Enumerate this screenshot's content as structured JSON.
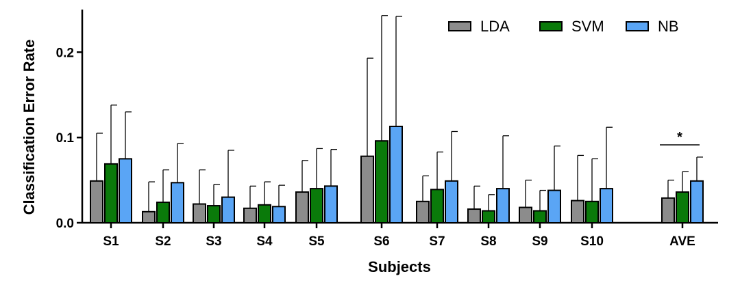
{
  "chart_data": {
    "type": "bar",
    "title": "",
    "xlabel": "Subjects",
    "ylabel": "Classification Error Rate",
    "ylim": [
      0,
      0.25
    ],
    "yticks": [
      "0.0",
      "0.1",
      "0.2"
    ],
    "ytick_values": [
      0,
      0.1,
      0.2
    ],
    "categories": [
      "S1",
      "S2",
      "S3",
      "S4",
      "S5",
      "S6",
      "S7",
      "S8",
      "S9",
      "S10",
      "AVE"
    ],
    "series": [
      {
        "name": "LDA",
        "color": "#8c8c8c",
        "values": [
          0.049,
          0.013,
          0.022,
          0.017,
          0.036,
          0.078,
          0.025,
          0.016,
          0.018,
          0.026,
          0.029
        ],
        "errors": [
          0.056,
          0.035,
          0.04,
          0.026,
          0.037,
          0.115,
          0.03,
          0.027,
          0.032,
          0.053,
          0.021
        ]
      },
      {
        "name": "SVM",
        "color": "#0a7a0a",
        "values": [
          0.069,
          0.024,
          0.02,
          0.021,
          0.04,
          0.096,
          0.039,
          0.014,
          0.014,
          0.025,
          0.036
        ],
        "errors": [
          0.069,
          0.038,
          0.025,
          0.027,
          0.047,
          0.147,
          0.044,
          0.019,
          0.024,
          0.05,
          0.024
        ]
      },
      {
        "name": "NB",
        "color": "#5aa5f5",
        "values": [
          0.075,
          0.047,
          0.03,
          0.019,
          0.043,
          0.113,
          0.049,
          0.04,
          0.038,
          0.04,
          0.049
        ],
        "errors": [
          0.055,
          0.046,
          0.055,
          0.025,
          0.043,
          0.129,
          0.058,
          0.062,
          0.052,
          0.072,
          0.028
        ]
      }
    ],
    "legend_position": "top-right",
    "annotation": "*",
    "grid": false
  }
}
